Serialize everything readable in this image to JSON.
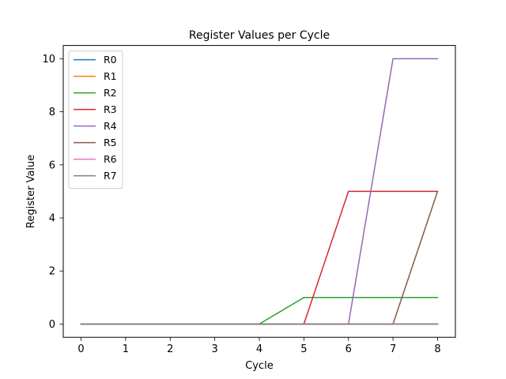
{
  "chart_data": {
    "type": "line",
    "title": "Register Values per Cycle",
    "xlabel": "Cycle",
    "ylabel": "Register Value",
    "x": [
      0,
      1,
      2,
      3,
      4,
      5,
      6,
      7,
      8
    ],
    "xlim": [
      -0.4,
      8.4
    ],
    "ylim": [
      -0.5,
      10.5
    ],
    "xticks": [
      0,
      1,
      2,
      3,
      4,
      5,
      6,
      7,
      8
    ],
    "yticks": [
      0,
      2,
      4,
      6,
      8,
      10
    ],
    "grid": false,
    "legend_position": "upper-left",
    "series": [
      {
        "name": "R0",
        "color": "#1f77b4",
        "values": [
          0,
          0,
          0,
          0,
          0,
          0,
          0,
          0,
          0
        ]
      },
      {
        "name": "R1",
        "color": "#ff7f0e",
        "values": [
          0,
          0,
          0,
          0,
          0,
          0,
          0,
          0,
          0
        ]
      },
      {
        "name": "R2",
        "color": "#2ca02c",
        "values": [
          0,
          0,
          0,
          0,
          0,
          1,
          1,
          1,
          1
        ]
      },
      {
        "name": "R3",
        "color": "#d62728",
        "values": [
          0,
          0,
          0,
          0,
          0,
          0,
          5,
          5,
          5
        ]
      },
      {
        "name": "R4",
        "color": "#9467bd",
        "values": [
          0,
          0,
          0,
          0,
          0,
          0,
          0,
          10,
          10
        ]
      },
      {
        "name": "R5",
        "color": "#8c564b",
        "values": [
          0,
          0,
          0,
          0,
          0,
          0,
          0,
          0,
          5
        ]
      },
      {
        "name": "R6",
        "color": "#e377c2",
        "values": [
          0,
          0,
          0,
          0,
          0,
          0,
          0,
          0,
          0
        ]
      },
      {
        "name": "R7",
        "color": "#7f7f7f",
        "values": [
          0,
          0,
          0,
          0,
          0,
          0,
          0,
          0,
          0
        ]
      }
    ]
  }
}
